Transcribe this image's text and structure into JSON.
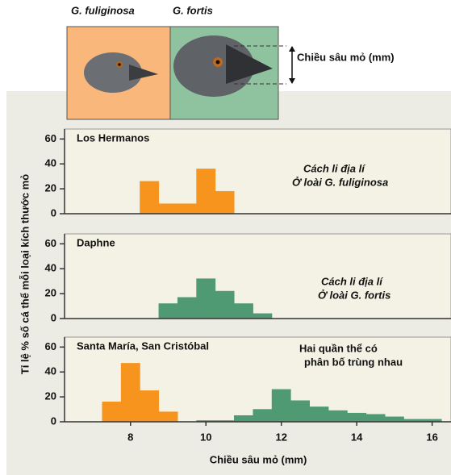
{
  "header": {
    "species": [
      "G. fuliginosa",
      "G. fortis"
    ],
    "measure_label": "Chiều sâu mỏ (mm)"
  },
  "y_label": "Tỉ lệ % số cá thể mỗi loại kích thước mỏ",
  "chart_data": [
    {
      "type": "histogram",
      "title": "Los Hermanos",
      "annotation": [
        "Cách li địa lí",
        "Ở loài G. fuliginosa"
      ],
      "annotation_italic": true,
      "xlim": [
        6.25,
        16.5
      ],
      "ylim": [
        0,
        68
      ],
      "yticks": [
        0,
        20,
        40,
        60
      ],
      "series": [
        {
          "color": "#f7941d",
          "bins": [
            8.25,
            8.75,
            9.25,
            9.75,
            10.25,
            10.75
          ],
          "values": [
            26,
            8,
            8,
            36,
            18
          ]
        }
      ]
    },
    {
      "type": "histogram",
      "title": "Daphne",
      "annotation": [
        "Cách li địa lí",
        "Ở loài G. fortis"
      ],
      "annotation_italic": true,
      "xlim": [
        6.25,
        16.5
      ],
      "ylim": [
        0,
        68
      ],
      "yticks": [
        0,
        20,
        40,
        60
      ],
      "series": [
        {
          "color": "#4f9a72",
          "bins": [
            8.75,
            9.25,
            9.75,
            10.25,
            10.75,
            11.25,
            11.75
          ],
          "values": [
            12,
            17,
            32,
            22,
            12,
            4
          ]
        }
      ]
    },
    {
      "type": "histogram",
      "title": "Santa María, San Cristóbal",
      "annotation": [
        "Hai quần thể có",
        "phân bố trùng nhau"
      ],
      "annotation_italic": false,
      "xlim": [
        6.25,
        16.5
      ],
      "ylim": [
        0,
        68
      ],
      "yticks": [
        0,
        20,
        40,
        60
      ],
      "x_label": "Chiều sâu mỏ (mm)",
      "xticks": [
        8,
        10,
        12,
        14,
        16
      ],
      "series": [
        {
          "color": "#f7941d",
          "bins": [
            7.25,
            7.75,
            8.25,
            8.75,
            9.25
          ],
          "values": [
            16,
            47,
            25,
            8
          ]
        },
        {
          "color": "#4f9a72",
          "bins": [
            9.75,
            10.25,
            10.75,
            11.25,
            11.75,
            12.25,
            12.75,
            13.25,
            13.75,
            14.25,
            14.75,
            15.25,
            15.75,
            16.25
          ],
          "values": [
            1,
            1,
            5,
            10,
            26,
            17,
            12,
            9,
            7,
            6,
            4,
            2,
            2
          ]
        }
      ]
    }
  ]
}
